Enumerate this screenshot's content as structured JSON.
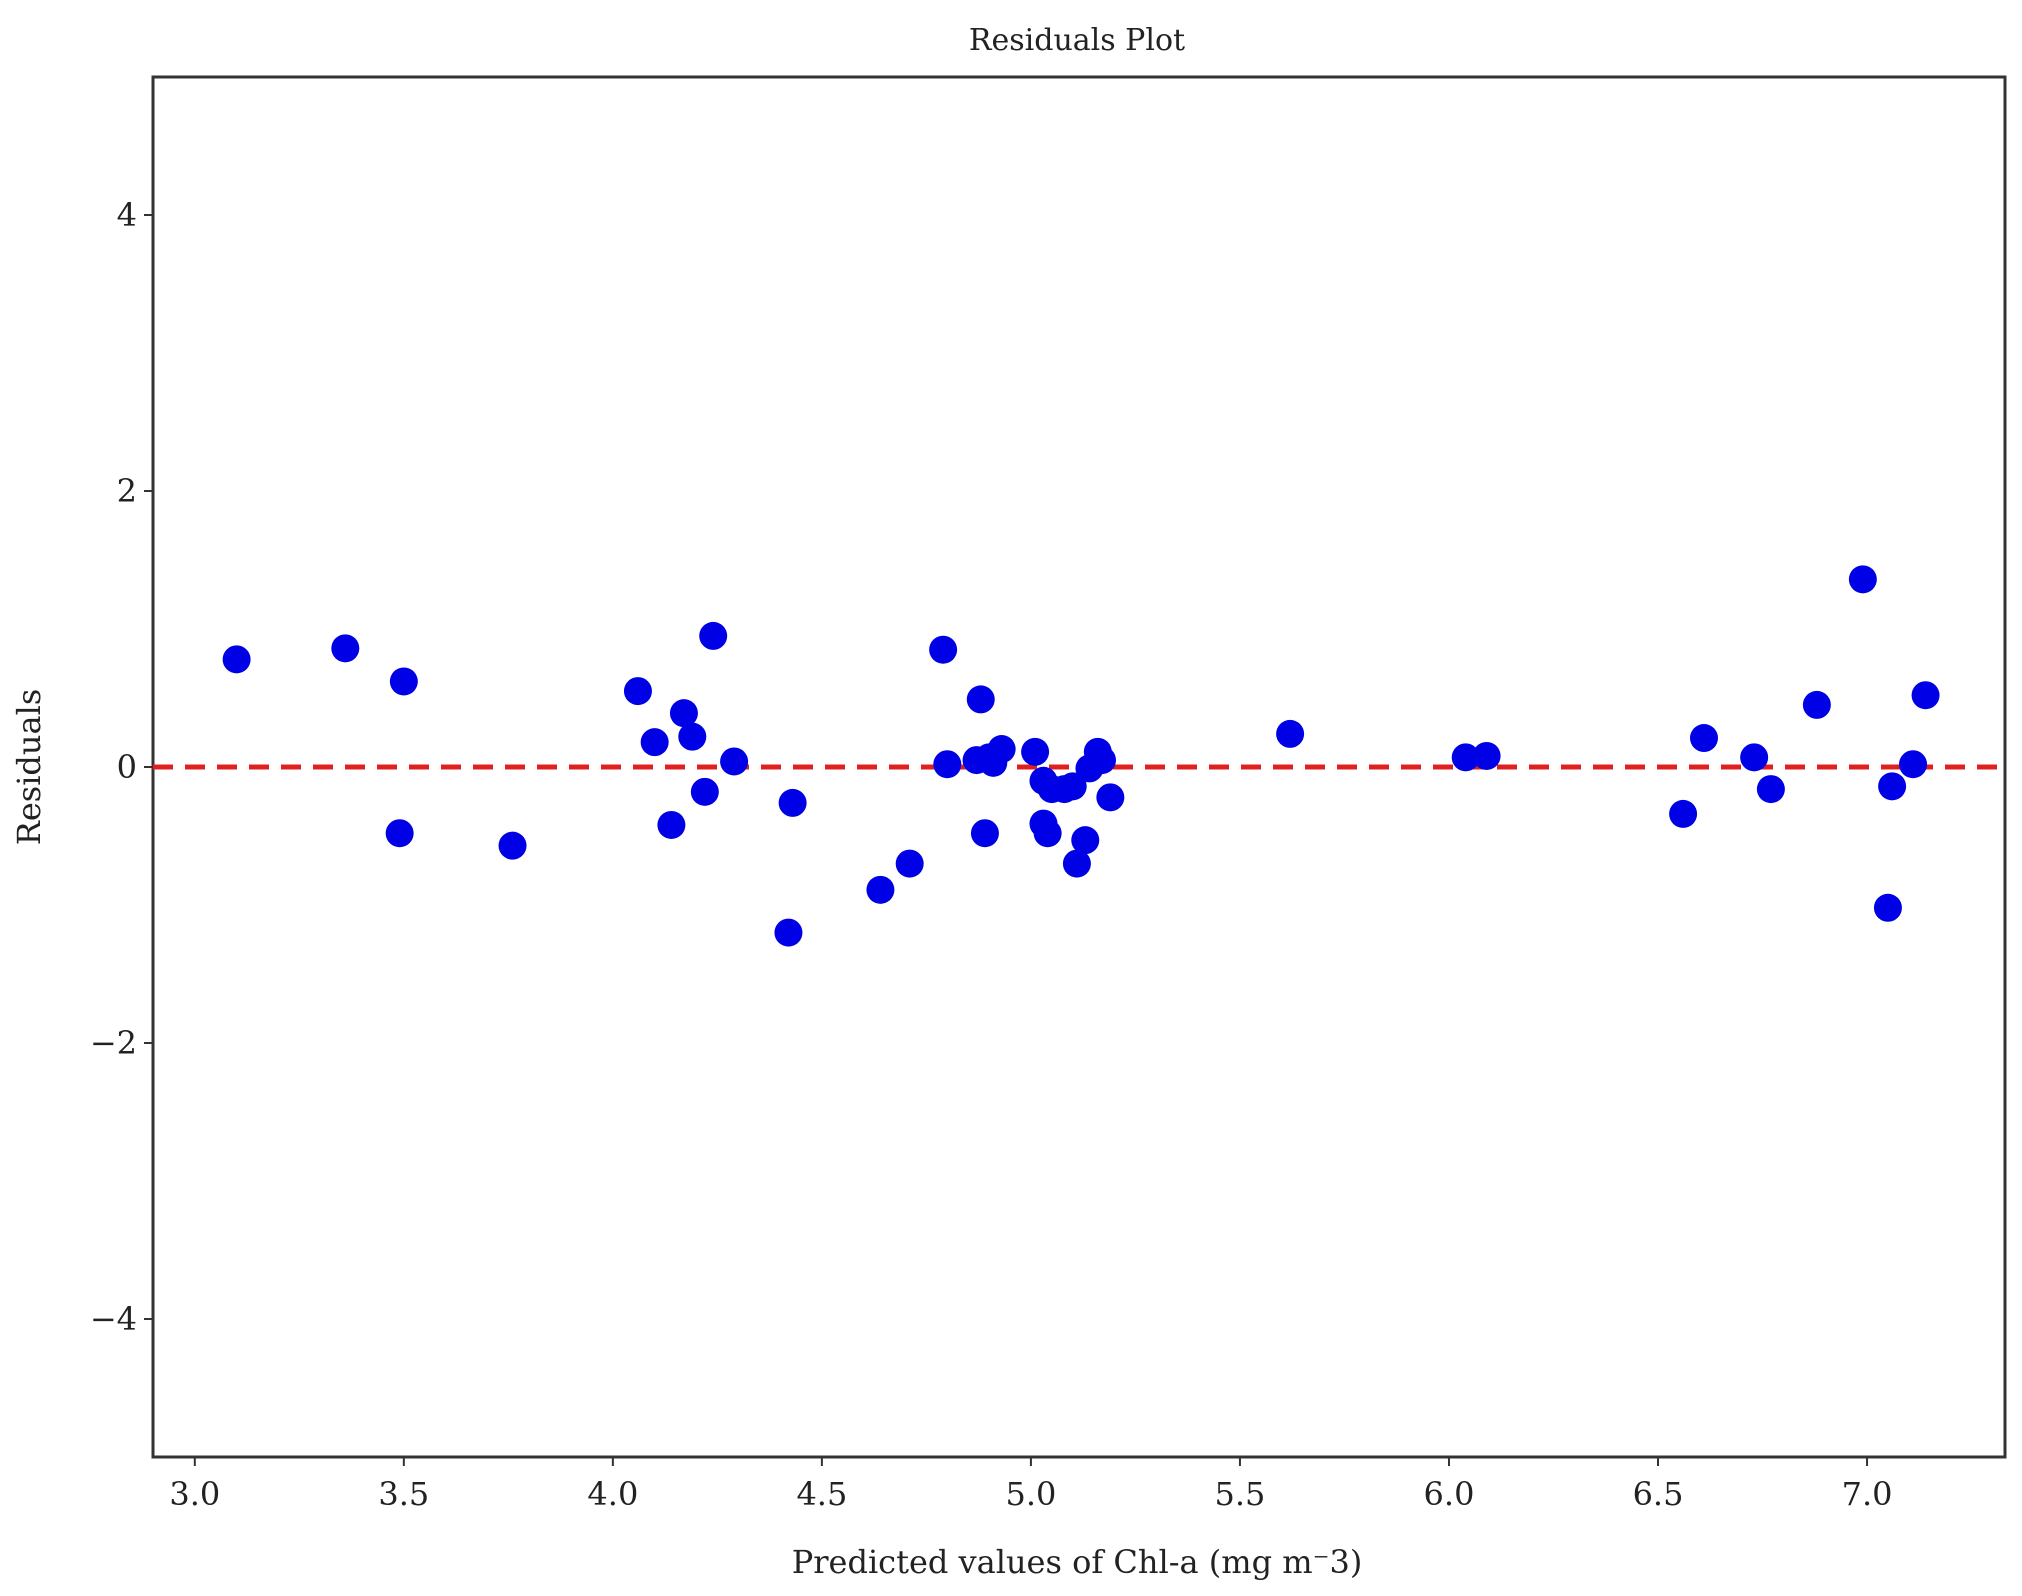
{
  "chart_data": {
    "type": "scatter",
    "title": "Residuals Plot",
    "xlabel": "Predicted values of Chl-a (mg m⁻3)",
    "ylabel": "Residuals",
    "xlim": [
      2.9,
      7.33
    ],
    "ylim": [
      -5.0,
      5.0
    ],
    "xticks": [
      3.0,
      3.5,
      4.0,
      4.5,
      5.0,
      5.5,
      6.0,
      6.5,
      7.0
    ],
    "xtick_labels": [
      "3.0",
      "3.5",
      "4.0",
      "4.5",
      "5.0",
      "5.5",
      "6.0",
      "6.5",
      "7.0"
    ],
    "yticks": [
      -4,
      -2,
      0,
      2,
      4
    ],
    "ytick_labels": [
      "−4",
      "−2",
      "0",
      "2",
      "4"
    ],
    "grid": false,
    "reference_line": {
      "y": 0,
      "style": "dashed",
      "color": "#e02020"
    },
    "marker_color": "#0000e6",
    "x": [
      3.1,
      3.36,
      3.5,
      3.49,
      3.76,
      4.06,
      4.1,
      4.14,
      4.17,
      4.19,
      4.22,
      4.24,
      4.29,
      4.42,
      4.43,
      4.64,
      4.71,
      4.79,
      4.8,
      4.87,
      4.88,
      4.89,
      4.9,
      4.91,
      4.93,
      5.01,
      5.03,
      5.03,
      5.04,
      5.05,
      5.08,
      5.1,
      5.11,
      5.13,
      5.14,
      5.16,
      5.17,
      5.19,
      5.62,
      6.04,
      6.09,
      6.56,
      6.61,
      6.73,
      6.77,
      6.88,
      6.99,
      7.05,
      7.06,
      7.11,
      7.14
    ],
    "y": [
      0.78,
      0.86,
      0.62,
      -0.48,
      -0.57,
      0.55,
      0.18,
      -0.42,
      0.39,
      0.22,
      -0.18,
      0.95,
      0.04,
      -1.2,
      -0.26,
      -0.89,
      -0.7,
      0.85,
      0.02,
      0.05,
      0.49,
      -0.48,
      0.07,
      0.03,
      0.13,
      0.11,
      -0.1,
      -0.41,
      -0.48,
      -0.16,
      -0.16,
      -0.14,
      -0.7,
      -0.53,
      -0.01,
      0.11,
      0.05,
      -0.22,
      0.24,
      0.07,
      0.08,
      -0.34,
      0.21,
      0.07,
      -0.16,
      0.45,
      1.36,
      -1.02,
      -0.14,
      0.02,
      0.52
    ]
  }
}
